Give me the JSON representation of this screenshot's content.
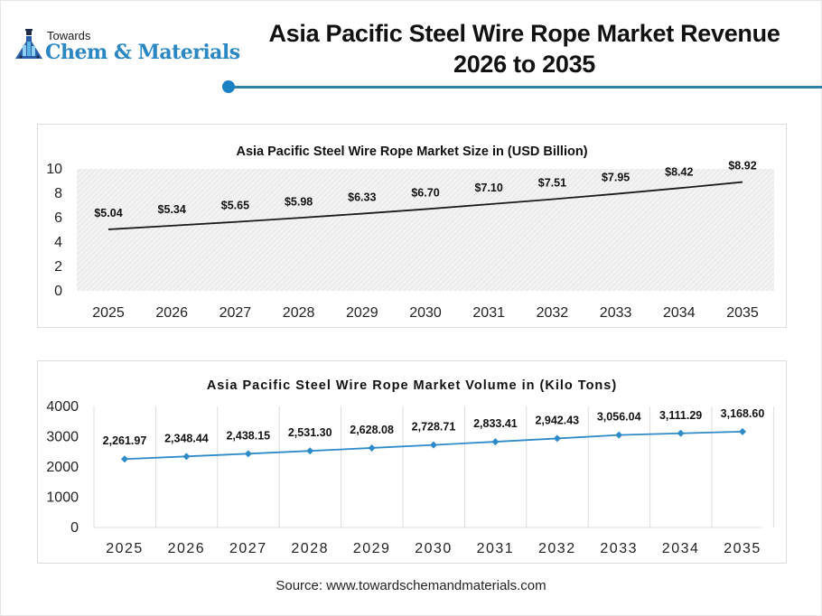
{
  "header": {
    "logo_top": "Towards",
    "logo_main": "Chem & Materials",
    "title_line1": "Asia Pacific Steel Wire Rope Market Revenue",
    "title_line2": "2026 to 2035",
    "accent_color": "#1a82c4",
    "brand_color": "#2a87c3"
  },
  "source": "Source: www.towardschemandmaterials.com",
  "chart_data": [
    {
      "type": "line",
      "title": "Asia Pacific Steel Wire Rope Market Size in (USD Billion)",
      "xlabel": "",
      "ylabel": "",
      "categories": [
        "2025",
        "2026",
        "2027",
        "2028",
        "2029",
        "2030",
        "2031",
        "2032",
        "2033",
        "2034",
        "2035"
      ],
      "values": [
        5.04,
        5.34,
        5.65,
        5.98,
        6.33,
        6.7,
        7.1,
        7.51,
        7.95,
        8.42,
        8.92
      ],
      "data_labels": [
        "$5.04",
        "$5.34",
        "$5.65",
        "$5.98",
        "$6.33",
        "$6.70",
        "$7.10",
        "$7.51",
        "$7.95",
        "$8.42",
        "$8.92"
      ],
      "yticks": [
        0,
        2,
        4,
        6,
        8,
        10
      ],
      "ylim": [
        0,
        10
      ],
      "grid": false,
      "plot_background": "hatched light gray",
      "line_color": "#1a1a1a",
      "legend": null
    },
    {
      "type": "line",
      "title": "Asia Pacific Steel Wire Rope Market Volume in (Kilo Tons)",
      "xlabel": "",
      "ylabel": "",
      "categories": [
        "2025",
        "2026",
        "2027",
        "2028",
        "2029",
        "2030",
        "2031",
        "2032",
        "2033",
        "2034",
        "2035"
      ],
      "values": [
        2261.97,
        2348.44,
        2438.15,
        2531.3,
        2628.08,
        2728.71,
        2833.41,
        2942.43,
        3056.04,
        3111.29,
        3168.6
      ],
      "data_labels": [
        "2,261.97",
        "2,348.44",
        "2,438.15",
        "2,531.30",
        "2,628.08",
        "2,728.71",
        "2,833.41",
        "2,942.43",
        "3,056.04",
        "3,111.29",
        "3,168.60"
      ],
      "yticks": [
        0,
        1000,
        2000,
        3000,
        4000
      ],
      "ylim": [
        0,
        4000
      ],
      "grid": "vertical category separators",
      "line_color": "#2e8bc9",
      "marker": "diamond",
      "legend": null
    }
  ]
}
